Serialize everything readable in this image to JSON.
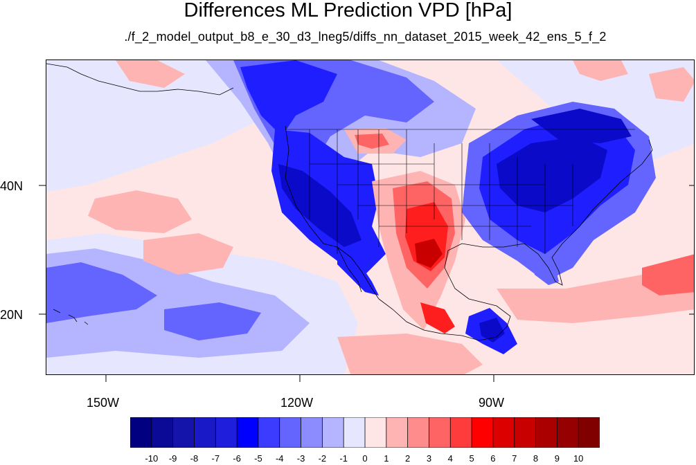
{
  "title": "Differences ML Prediction VPD [hPa]",
  "subtitle": "./f_2_model_output_b8_e_30_d3_lneg5/diffs_nn_dataset_2015_week_42_ens_5_f_2",
  "lat_labels": [
    "40N",
    "20N"
  ],
  "lon_labels": [
    "150W",
    "120W",
    "90W"
  ],
  "colorbar": {
    "labels": [
      "-10",
      "-9",
      "-8",
      "-7",
      "-6",
      "-5",
      "-4",
      "-3",
      "-2",
      "-1",
      "0",
      "1",
      "2",
      "3",
      "4",
      "5",
      "6",
      "7",
      "8",
      "9",
      "10"
    ],
    "colors": [
      "#000080",
      "#0a0a96",
      "#1414aa",
      "#1919c8",
      "#1e1edc",
      "#0000ff",
      "#3c3cff",
      "#6464ff",
      "#8c8cff",
      "#b4b4ff",
      "#e6e6ff",
      "#ffe6e6",
      "#ffb4b4",
      "#ff8c8c",
      "#ff6464",
      "#ff3c3c",
      "#ff0000",
      "#dc0000",
      "#c80000",
      "#aa0000",
      "#960000",
      "#800000"
    ]
  },
  "map": {
    "background_color": "#ffe6e6",
    "colors": {
      "light_blue": "#e6e6ff",
      "pale_blue": "#b4b4ff",
      "mid_blue": "#6464ff",
      "blue": "#1e1eff",
      "deep_blue": "#0a0ac8",
      "pale_red": "#ffb4b4",
      "mid_red": "#ff6464",
      "red": "#ff1e1e",
      "deep_red": "#c80000"
    }
  }
}
